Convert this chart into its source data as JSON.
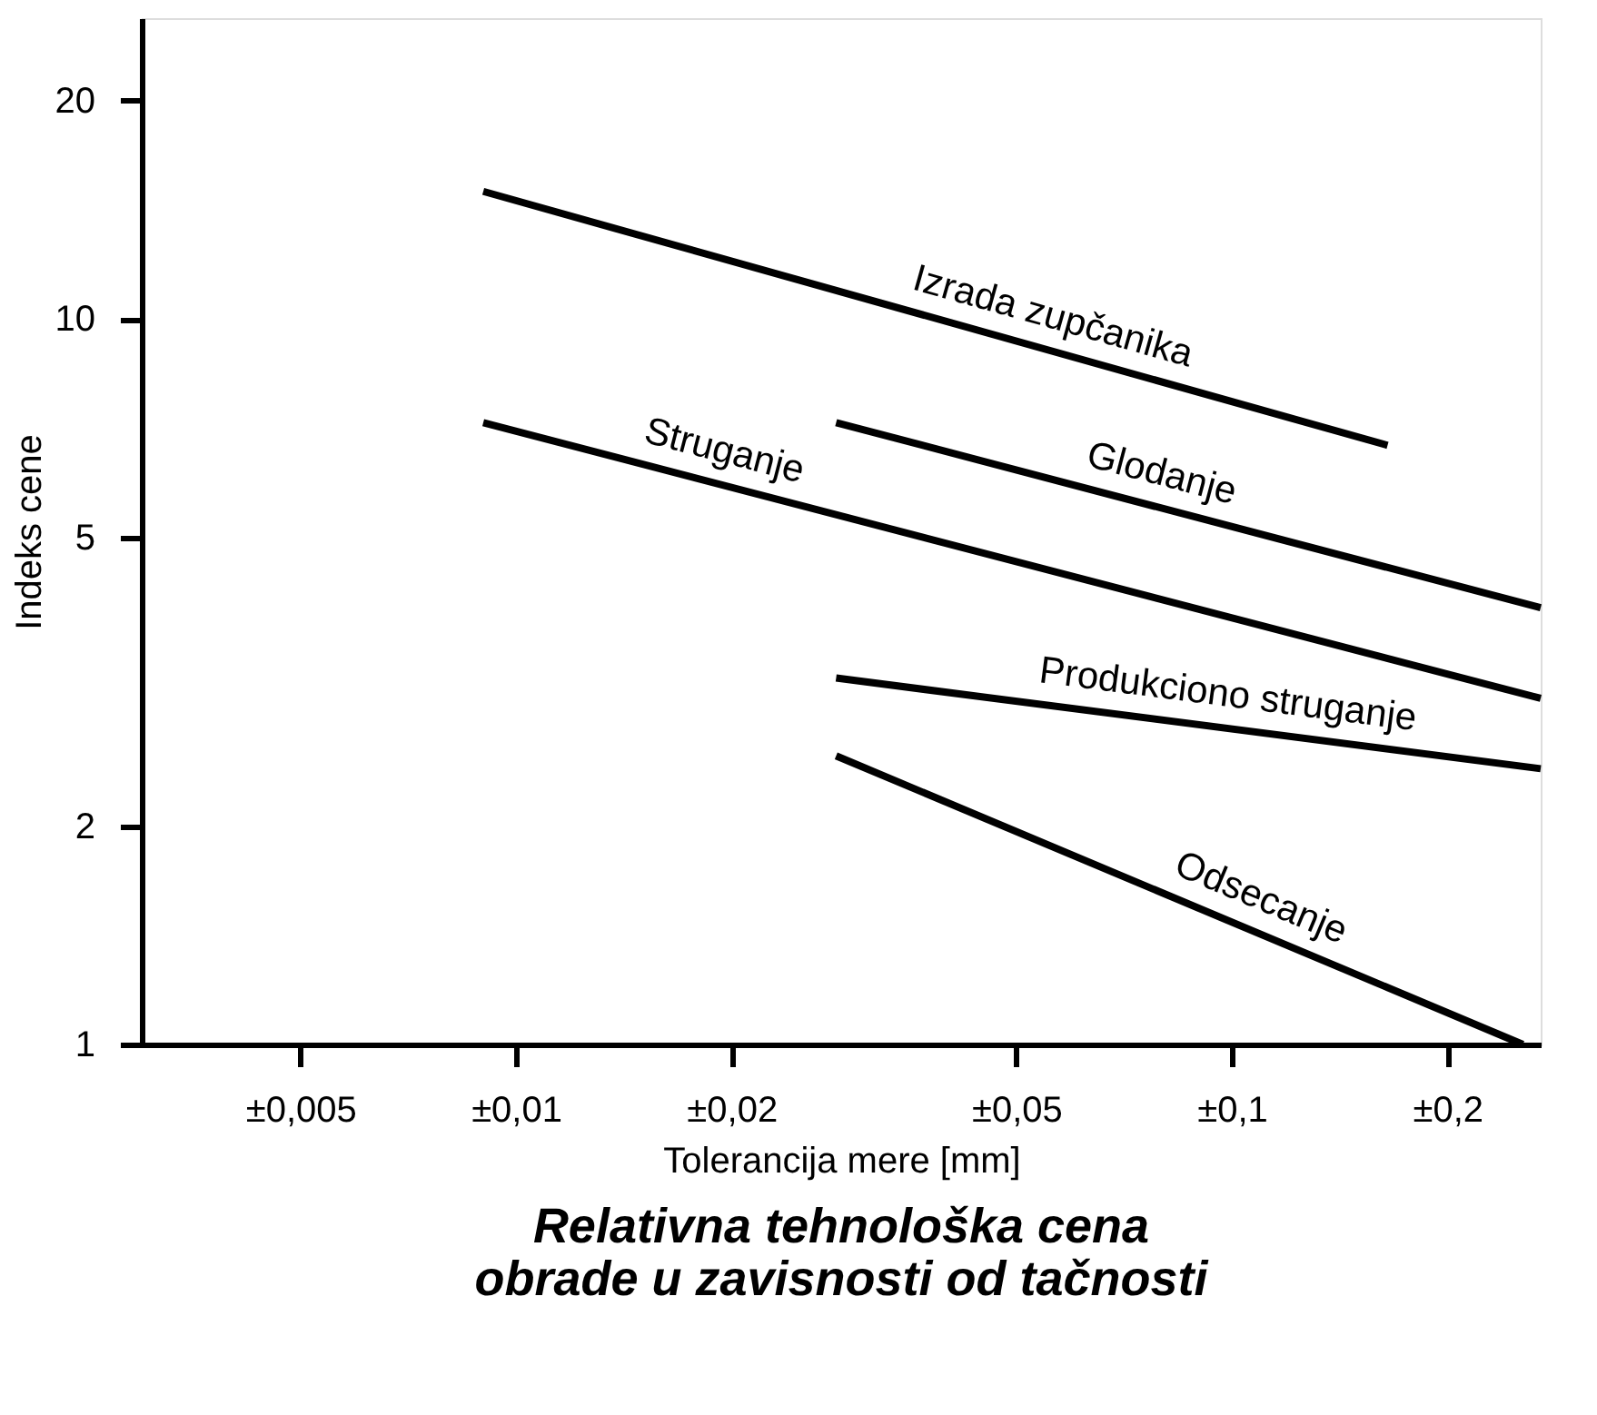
{
  "chart_data": {
    "type": "line",
    "title": "Relativna tehnološka cena obrade u zavisnosti od tačnosti",
    "xlabel": "Tolerancija mere [mm]",
    "ylabel": "Indeks cene",
    "log": "xy",
    "grid": false,
    "legend": false,
    "marker": "none",
    "line_style": "solid",
    "xlim": [
      0.003,
      0.27
    ],
    "ylim": [
      1,
      26
    ],
    "xticks": [
      {
        "value": 0.005,
        "label": "±0,005"
      },
      {
        "value": 0.01,
        "label": "±0,01"
      },
      {
        "value": 0.02,
        "label": "±0,02"
      },
      {
        "value": 0.05,
        "label": "±0,05"
      },
      {
        "value": 0.1,
        "label": "±0,1"
      },
      {
        "value": 0.2,
        "label": "±0,2"
      }
    ],
    "yticks": [
      1,
      2,
      5,
      10,
      20
    ],
    "series": [
      {
        "name": "Izrada zupčanika",
        "color": "#000000",
        "x": [
          0.009,
          0.165
        ],
        "values": [
          15,
          6.7
        ]
      },
      {
        "name": "Glodanje",
        "color": "#000000",
        "x": [
          0.028,
          0.27
        ],
        "values": [
          7.2,
          4.0
        ]
      },
      {
        "name": "Struganje",
        "color": "#000000",
        "x": [
          0.009,
          0.27
        ],
        "values": [
          7.2,
          3.0
        ]
      },
      {
        "name": "Produkciono struganje",
        "color": "#000000",
        "x": [
          0.028,
          0.27
        ],
        "values": [
          3.2,
          2.4
        ]
      },
      {
        "name": "Odsecanje",
        "color": "#000000",
        "x": [
          0.028,
          0.255
        ],
        "values": [
          2.5,
          1.0
        ]
      }
    ]
  }
}
